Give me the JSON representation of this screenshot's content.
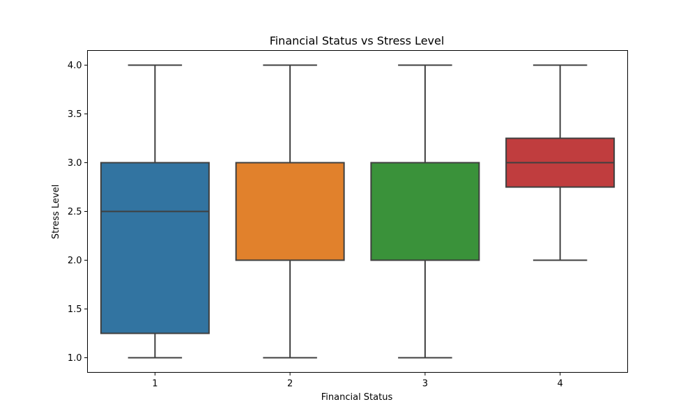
{
  "chart_data": {
    "type": "box",
    "title": "Financial Status vs Stress Level",
    "xlabel": "Financial Status",
    "ylabel": "Stress Level",
    "categories": [
      "1",
      "2",
      "3",
      "4"
    ],
    "ylim": [
      0.85,
      4.15
    ],
    "yticks": [
      "1.0",
      "1.5",
      "2.0",
      "2.5",
      "3.0",
      "3.5",
      "4.0"
    ],
    "grid": false,
    "boxes": [
      {
        "category": "1",
        "whisker_low": 1.0,
        "q1": 1.25,
        "median": 2.5,
        "q3": 3.0,
        "whisker_high": 4.0,
        "color": "#3274a1"
      },
      {
        "category": "2",
        "whisker_low": 1.0,
        "q1": 2.0,
        "median": 2.0,
        "q3": 3.0,
        "whisker_high": 4.0,
        "color": "#e1812c"
      },
      {
        "category": "3",
        "whisker_low": 1.0,
        "q1": 2.0,
        "median": 2.0,
        "q3": 3.0,
        "whisker_high": 4.0,
        "color": "#3a923a"
      },
      {
        "category": "4",
        "whisker_low": 2.0,
        "q1": 2.75,
        "median": 3.0,
        "q3": 3.25,
        "whisker_high": 4.0,
        "color": "#c03d3e"
      }
    ],
    "line_color": "#3f3f3f"
  }
}
